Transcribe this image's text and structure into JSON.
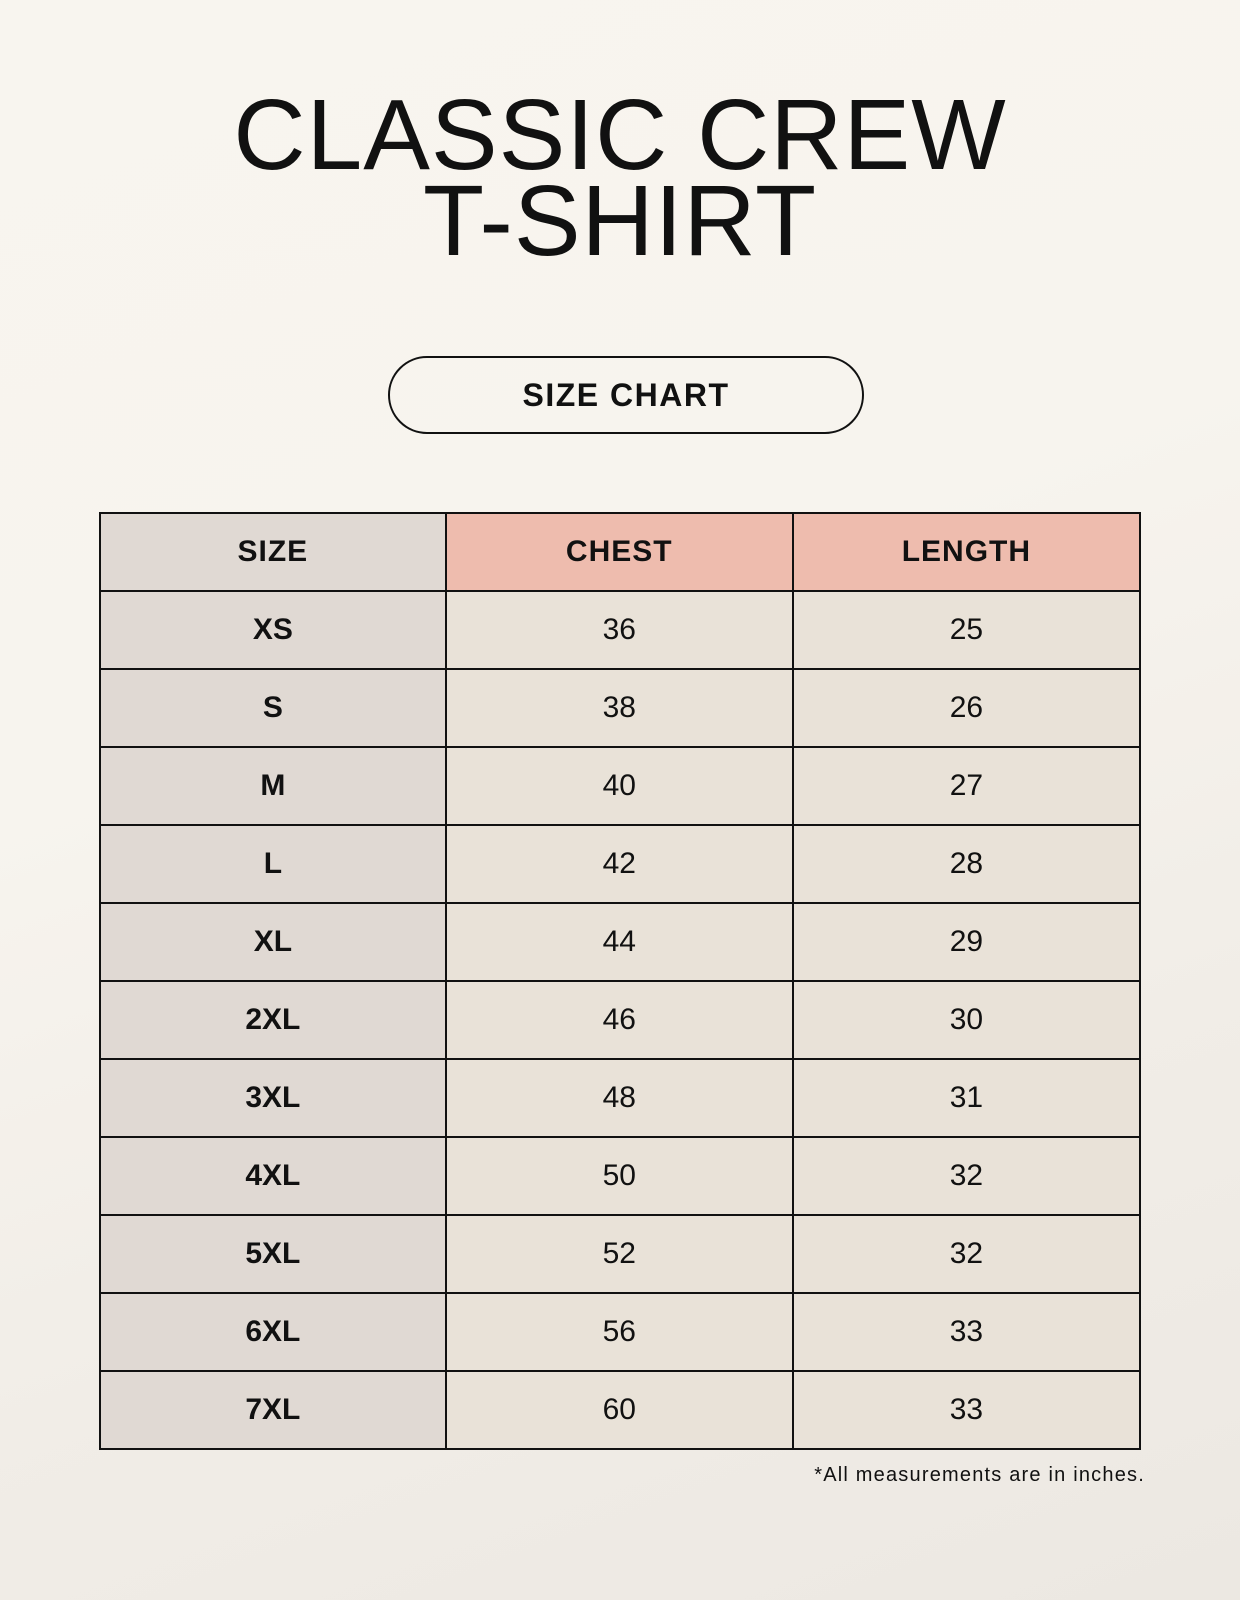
{
  "title": {
    "line1": "CLASSIC CREW",
    "line2": "T-SHIRT"
  },
  "badge": "SIZE CHART",
  "table": {
    "headers": [
      "SIZE",
      "CHEST",
      "LENGTH"
    ],
    "rows": [
      [
        "XS",
        "36",
        "25"
      ],
      [
        "S",
        "38",
        "26"
      ],
      [
        "M",
        "40",
        "27"
      ],
      [
        "L",
        "42",
        "28"
      ],
      [
        "XL",
        "44",
        "29"
      ],
      [
        "2XL",
        "46",
        "30"
      ],
      [
        "3XL",
        "48",
        "31"
      ],
      [
        "4XL",
        "50",
        "32"
      ],
      [
        "5XL",
        "52",
        "32"
      ],
      [
        "6XL",
        "56",
        "33"
      ],
      [
        "7XL",
        "60",
        "33"
      ]
    ]
  },
  "footnote": "*All measurements are in inches.",
  "colors": {
    "header_accent": "#eebcae",
    "size_column": "#e0d9d3",
    "value_cells": "#e9e2d8",
    "background": "#f8f5ef"
  }
}
